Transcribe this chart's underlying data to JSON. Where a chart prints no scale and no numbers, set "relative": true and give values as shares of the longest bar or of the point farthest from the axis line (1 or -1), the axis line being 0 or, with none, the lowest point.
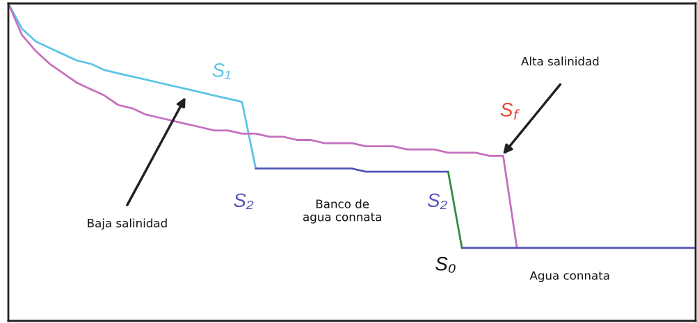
{
  "chart_data": {
    "type": "line",
    "relative": true,
    "legend": false,
    "marker": "none",
    "line_style": "solid",
    "categories": [
      null,
      null,
      null,
      null,
      null,
      null,
      null,
      null,
      null,
      null,
      null,
      null,
      null,
      null,
      null,
      null,
      null,
      null,
      null,
      null,
      null,
      null,
      null,
      null,
      null,
      null,
      null,
      null,
      null,
      null,
      null,
      null,
      null,
      null,
      null,
      null,
      null,
      null,
      null,
      null,
      null,
      null,
      null,
      null,
      null,
      null,
      null,
      null,
      null,
      null,
      null
    ],
    "series": [
      {
        "color": "#5cc4e6",
        "values": [
          1,
          0.92,
          0.88,
          0.86,
          0.84,
          0.82,
          0.81,
          0.79,
          0.78,
          0.77,
          0.76,
          0.75,
          0.74,
          0.73,
          0.72,
          0.71,
          0.7,
          0.69,
          0.48,
          null,
          null,
          null,
          null,
          null,
          null,
          null,
          null,
          null,
          null,
          null,
          null,
          null,
          null,
          null,
          null,
          null,
          null,
          null,
          null,
          null,
          null,
          null,
          null,
          null,
          null,
          null,
          null,
          null,
          null,
          null,
          null
        ]
      },
      {
        "color": "#c66fbf",
        "values": [
          1,
          0.9,
          0.85,
          0.81,
          0.78,
          0.75,
          0.73,
          0.71,
          0.68,
          0.67,
          0.65,
          0.64,
          0.63,
          0.62,
          0.61,
          0.6,
          0.6,
          0.59,
          0.59,
          0.58,
          0.58,
          0.57,
          0.57,
          0.56,
          0.56,
          0.56,
          0.55,
          0.55,
          0.55,
          0.54,
          0.54,
          0.54,
          0.53,
          0.53,
          0.53,
          0.52,
          0.52,
          0.23,
          null,
          null,
          null,
          null,
          null,
          null,
          null,
          null,
          null,
          null,
          null,
          null,
          null
        ]
      },
      {
        "color": "#5252b8",
        "values": [
          null,
          null,
          null,
          null,
          null,
          null,
          null,
          null,
          null,
          null,
          null,
          null,
          null,
          null,
          null,
          null,
          null,
          null,
          0.48,
          0.48,
          0.48,
          0.48,
          0.48,
          0.48,
          0.48,
          0.48,
          0.47,
          0.47,
          0.47,
          0.47,
          0.47,
          0.47,
          0.47,
          null,
          null,
          null,
          null,
          null,
          null,
          null,
          null,
          null,
          null,
          null,
          null,
          null,
          null,
          null,
          null,
          null,
          null
        ]
      },
      {
        "color": "#2e8b3e",
        "values": [
          null,
          null,
          null,
          null,
          null,
          null,
          null,
          null,
          null,
          null,
          null,
          null,
          null,
          null,
          null,
          null,
          null,
          null,
          null,
          null,
          null,
          null,
          null,
          null,
          null,
          null,
          null,
          null,
          null,
          null,
          null,
          null,
          0.47,
          0.23,
          null,
          null,
          null,
          null,
          null,
          null,
          null,
          null,
          null,
          null,
          null,
          null,
          null,
          null,
          null,
          null,
          null
        ]
      },
      {
        "color": "#5252b8",
        "values": [
          null,
          null,
          null,
          null,
          null,
          null,
          null,
          null,
          null,
          null,
          null,
          null,
          null,
          null,
          null,
          null,
          null,
          null,
          null,
          null,
          null,
          null,
          null,
          null,
          null,
          null,
          null,
          null,
          null,
          null,
          null,
          null,
          null,
          0.23,
          0.23,
          0.23,
          0.23,
          0.23,
          0.23,
          0.23,
          0.23,
          0.23,
          0.23,
          0.23,
          0.23,
          0.23,
          0.23,
          0.23,
          0.23,
          0.23,
          0.23
        ]
      }
    ],
    "annotations": [
      "S₁",
      "S₂",
      "S₂",
      "S$_{f}$",
      "S₀",
      "Alta salinidad",
      "Baja salinidad",
      "Banco de\nagua connata",
      "Agua connata"
    ]
  }
}
